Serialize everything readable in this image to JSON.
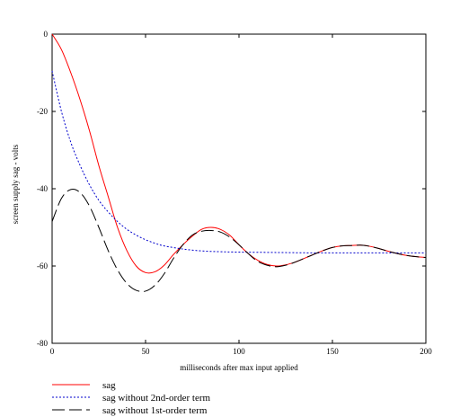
{
  "chart_data": {
    "type": "line",
    "xlabel": "milliseconds after max input applied",
    "ylabel": "screen supply sag - volts",
    "xlim": [
      0,
      200
    ],
    "ylim": [
      -80,
      0
    ],
    "x_ticks": [
      0,
      50,
      100,
      150,
      200
    ],
    "y_ticks": [
      0,
      -20,
      -40,
      -60,
      -80
    ],
    "x_tick_labels": [
      "0",
      "50",
      "100",
      "150",
      "200"
    ],
    "y_tick_labels": [
      "0",
      "-20",
      "-40",
      "-60",
      "-80"
    ],
    "grid": false,
    "legend_position": "bottom-left, below plot",
    "series": [
      {
        "name": "sag",
        "color": "#ff0000",
        "dash": "solid",
        "x": [
          0,
          5,
          10,
          15,
          20,
          25,
          30,
          35,
          40,
          45,
          50,
          55,
          60,
          65,
          70,
          75,
          80,
          85,
          90,
          95,
          100,
          105,
          110,
          115,
          120,
          125,
          130,
          135,
          140,
          145,
          150,
          155,
          160,
          165,
          170,
          175,
          180,
          185,
          190,
          195,
          200
        ],
        "values": [
          0,
          -4,
          -10,
          -17,
          -25,
          -34,
          -42,
          -50,
          -56,
          -60,
          -61.7,
          -61.5,
          -59.8,
          -57,
          -54.5,
          -52.3,
          -50.5,
          -50,
          -50.5,
          -52,
          -54.5,
          -56.8,
          -58.5,
          -59.6,
          -60,
          -59.7,
          -59,
          -58,
          -57,
          -56,
          -55.2,
          -54.8,
          -54.7,
          -54.6,
          -54.9,
          -55.5,
          -56.2,
          -56.8,
          -57.3,
          -57.6,
          -57.8
        ]
      },
      {
        "name": "sag without 2nd-order term",
        "color": "#0000cc",
        "dash": "dotted",
        "x": [
          0,
          5,
          10,
          15,
          20,
          25,
          30,
          35,
          40,
          45,
          50,
          55,
          60,
          70,
          80,
          90,
          100,
          120,
          140,
          160,
          180,
          200
        ],
        "values": [
          -9.5,
          -20,
          -28,
          -34,
          -39,
          -43,
          -46,
          -48.5,
          -50.5,
          -52,
          -53.2,
          -54.1,
          -54.8,
          -55.6,
          -56.1,
          -56.3,
          -56.4,
          -56.5,
          -56.6,
          -56.6,
          -56.6,
          -56.6
        ]
      },
      {
        "name": "sag without 1st-order term",
        "color": "#000000",
        "dash": "dashed",
        "x": [
          0,
          5,
          10,
          15,
          20,
          25,
          30,
          35,
          40,
          45,
          50,
          55,
          60,
          65,
          70,
          75,
          80,
          85,
          90,
          95,
          100,
          105,
          110,
          115,
          120,
          125,
          130,
          135,
          140,
          145,
          150,
          155,
          160,
          165,
          170,
          175,
          180,
          185,
          190,
          195,
          200
        ],
        "values": [
          -48.5,
          -42.5,
          -40.2,
          -41,
          -44.5,
          -50,
          -56,
          -61,
          -64.5,
          -66.3,
          -66.5,
          -65,
          -62,
          -58,
          -54.5,
          -52,
          -51,
          -50.8,
          -51.2,
          -52.5,
          -54.5,
          -56.8,
          -58.8,
          -59.8,
          -60.2,
          -59.8,
          -59,
          -58,
          -57,
          -56,
          -55.2,
          -54.8,
          -54.7,
          -54.6,
          -54.9,
          -55.5,
          -56.2,
          -56.8,
          -57.3,
          -57.6,
          -57.8
        ]
      }
    ]
  }
}
